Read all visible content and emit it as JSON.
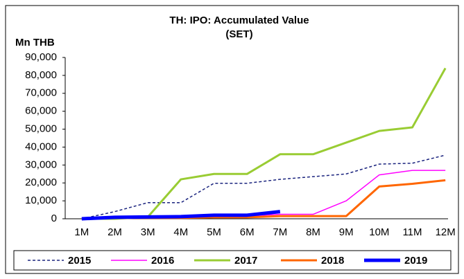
{
  "chart_data": {
    "type": "line",
    "title": "TH: IPO: Accumulated Value",
    "subtitle": "(SET)",
    "y_label": "Mn THB",
    "categories": [
      "1M",
      "2M",
      "3M",
      "4M",
      "5M",
      "6M",
      "7M",
      "8M",
      "9M",
      "10M",
      "11M",
      "12M"
    ],
    "series": [
      {
        "name": "2015",
        "color": "#1a237e",
        "dash": true,
        "width": 1.5,
        "values": [
          0,
          4000,
          9000,
          9000,
          19800,
          19800,
          22000,
          23500,
          25000,
          30500,
          31000,
          35500
        ]
      },
      {
        "name": "2016",
        "color": "#ff00ff",
        "dash": false,
        "width": 1.5,
        "values": [
          0,
          500,
          800,
          1000,
          1500,
          1500,
          2500,
          2500,
          10000,
          24500,
          27000,
          27000
        ]
      },
      {
        "name": "2017",
        "color": "#99cc33",
        "dash": false,
        "width": 3,
        "values": [
          0,
          0,
          1000,
          22000,
          25000,
          25000,
          36000,
          36000,
          42500,
          49000,
          51000,
          84000
        ]
      },
      {
        "name": "2018",
        "color": "#ff6600",
        "dash": false,
        "width": 3,
        "values": [
          0,
          500,
          500,
          500,
          800,
          800,
          1500,
          1500,
          1500,
          18000,
          19500,
          21500
        ]
      },
      {
        "name": "2019",
        "color": "#0000ff",
        "dash": false,
        "width": 5,
        "values": [
          0,
          800,
          1000,
          1200,
          2000,
          2000,
          4000,
          null,
          null,
          null,
          null,
          null
        ]
      }
    ],
    "ylim": [
      0,
      90000
    ],
    "yticks": [
      0,
      {
        "value": 10000,
        "label": "10,000"
      },
      {
        "value": 20000,
        "label": "20,000"
      },
      {
        "value": 30000,
        "label": "30,000"
      },
      {
        "value": 40000,
        "label": "40,000"
      },
      {
        "value": 50000,
        "label": "50,000"
      },
      {
        "value": 60000,
        "label": "60,000"
      },
      {
        "value": 70000,
        "label": "70,000"
      },
      {
        "value": 80000,
        "label": "80,000"
      },
      {
        "value": 90000,
        "label": "90,000"
      }
    ]
  }
}
